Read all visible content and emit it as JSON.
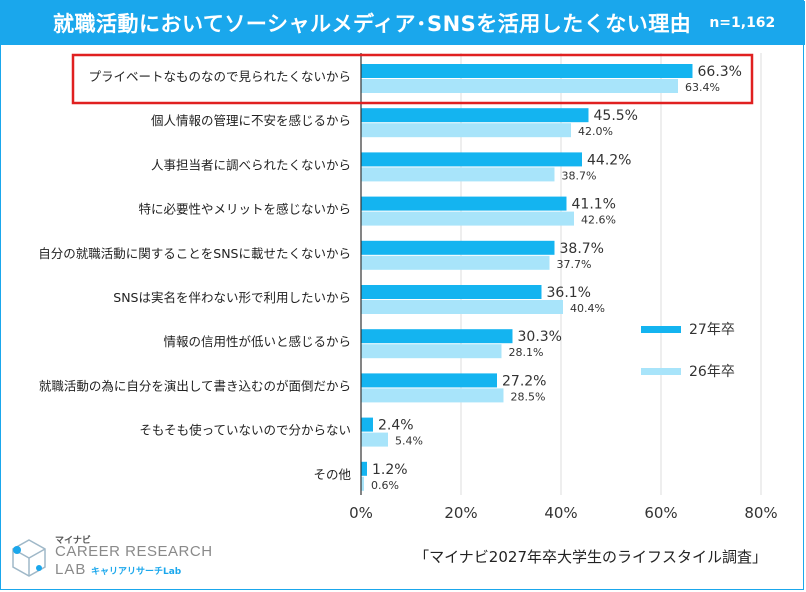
{
  "header": {
    "title": "就職活動においてソーシャルメディア･SNSを活用したくない理由",
    "n_label": "n=1,162"
  },
  "colors": {
    "header_bg": "#1aa7ec",
    "series_27": "#14b4f0",
    "series_26": "#a8e4fa",
    "highlight_box": "#e02020",
    "axis": "#333333",
    "grid": "#dddddd"
  },
  "chart_data": {
    "type": "bar",
    "orientation": "horizontal",
    "categories": [
      "プライベートなものなので見られたくないから",
      "個人情報の管理に不安を感じるから",
      "人事担当者に調べられたくないから",
      "特に必要性やメリットを感じないから",
      "自分の就職活動に関することをSNSに載せたくないから",
      "SNSは実名を伴わない形で利用したいから",
      "情報の信用性が低いと感じるから",
      "就職活動の為に自分を演出して書き込むのが面倒だから",
      "そもそも使っていないので分からない",
      "その他"
    ],
    "series": [
      {
        "name": "27年卒",
        "values": [
          66.3,
          45.5,
          44.2,
          41.1,
          38.7,
          36.1,
          30.3,
          27.2,
          2.4,
          1.2
        ],
        "labels": [
          "66.3%",
          "45.5%",
          "44.2%",
          "41.1%",
          "38.7%",
          "36.1%",
          "30.3%",
          "27.2%",
          "2.4%",
          "1.2%"
        ]
      },
      {
        "name": "26年卒",
        "values": [
          63.4,
          42.0,
          38.7,
          42.6,
          37.7,
          40.4,
          28.1,
          28.5,
          5.4,
          0.6
        ],
        "labels": [
          "63.4%",
          "42.0%",
          "38.7%",
          "42.6%",
          "37.7%",
          "40.4%",
          "28.1%",
          "28.5%",
          "5.4%",
          "0.6%"
        ]
      }
    ],
    "xlim": [
      0,
      80
    ],
    "xticks": [
      "0%",
      "20%",
      "40%",
      "60%",
      "80%"
    ],
    "xtick_values": [
      0,
      20,
      40,
      60,
      80
    ],
    "grid": true,
    "legend_placement": "right",
    "highlighted_category_index": 0
  },
  "logo": {
    "small": "マイナビ",
    "main": "CAREER RESEARCH",
    "lab": "LAB",
    "sub": "キャリアリサーチLab"
  },
  "source": "「マイナビ2027年卒大学生のライフスタイル調査」"
}
